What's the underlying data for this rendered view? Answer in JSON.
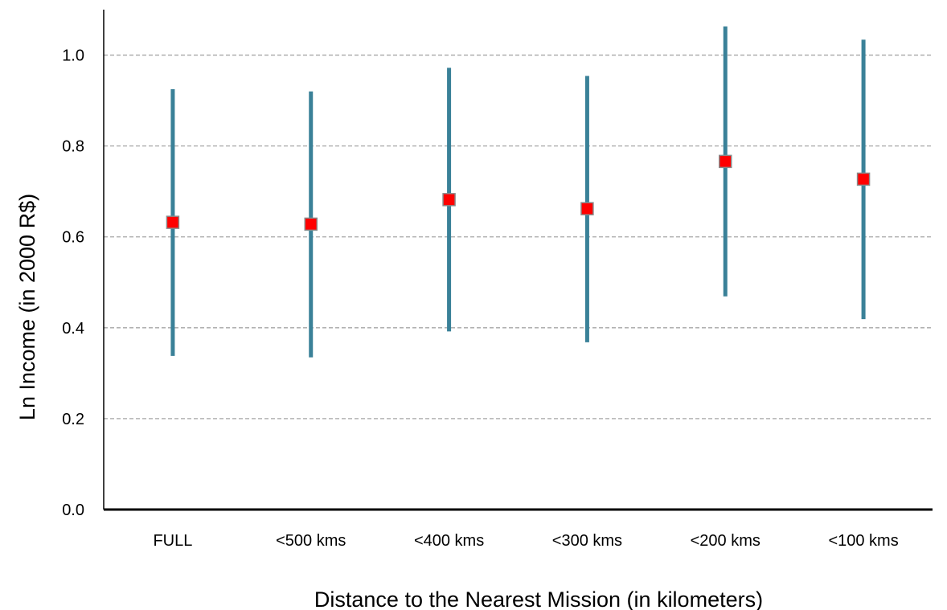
{
  "chart_data": {
    "type": "scatter",
    "title": "",
    "xlabel": "Distance to the Nearest Mission (in kilometers)",
    "ylabel": "Ln Income (in 2000 R$)",
    "categories": [
      "FULL",
      "<500 kms",
      "<400 kms",
      "<300 kms",
      "<200 kms",
      "<100 kms"
    ],
    "series": [
      {
        "values": [
          0.632,
          0.628,
          0.682,
          0.662,
          0.766,
          0.727
        ],
        "lower": [
          0.338,
          0.335,
          0.392,
          0.368,
          0.469,
          0.419
        ],
        "upper": [
          0.925,
          0.92,
          0.972,
          0.954,
          1.063,
          1.034
        ],
        "marker": "square"
      }
    ],
    "ylim": [
      0.0,
      1.1
    ],
    "yticks": [
      "0.0",
      "0.2",
      "0.4",
      "0.6",
      "0.8",
      "1.0"
    ],
    "grid": true,
    "colors": {
      "errorbar": "#3a8198",
      "marker": "#ff0000",
      "marker_edge": "#8a8a8a",
      "grid": "#a6a6a6",
      "axis": "#000000"
    }
  }
}
